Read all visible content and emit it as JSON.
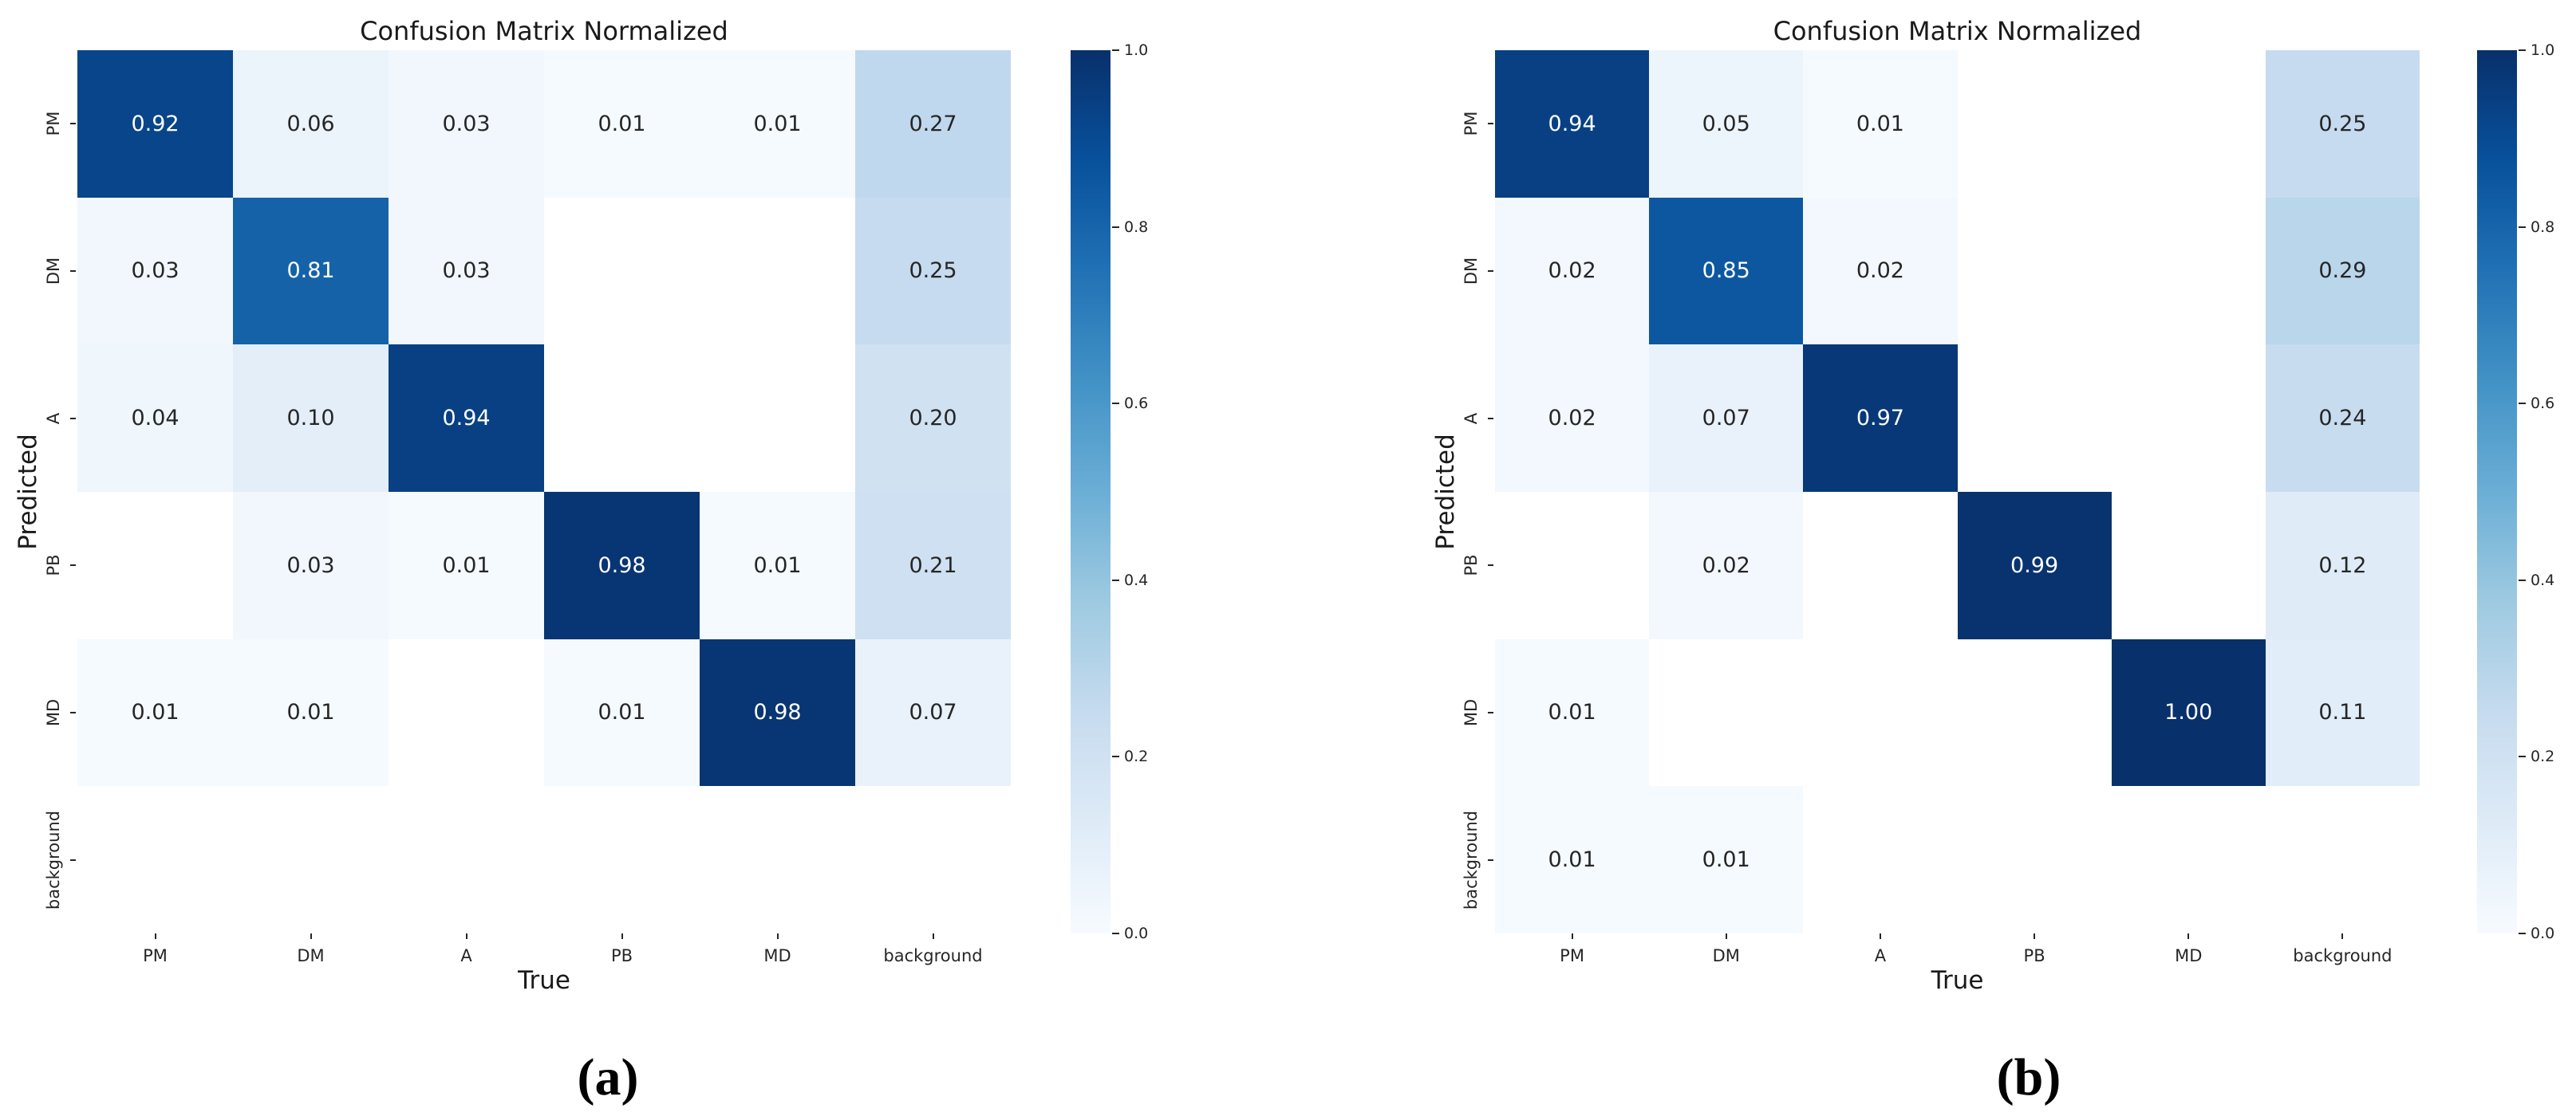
{
  "classes": [
    "PM",
    "DM",
    "A",
    "PB",
    "MD",
    "background"
  ],
  "colormap": {
    "name": "Blues",
    "stops": [
      "#f7fbff",
      "#deebf7",
      "#c6dbef",
      "#9ecae1",
      "#6baed6",
      "#4292c6",
      "#2171b5",
      "#08519c",
      "#08306b"
    ],
    "empty_cell_color": "#ffffff",
    "dark_text": "#262626",
    "light_text": "#ffffff",
    "text_switch_threshold": 0.5
  },
  "colorbar": {
    "tick_labels": [
      "1.0",
      "0.8",
      "0.6",
      "0.4",
      "0.2",
      "0.0"
    ],
    "vmin": 0.0,
    "vmax": 1.0
  },
  "chart_data": [
    {
      "type": "heatmap",
      "title": "Confusion Matrix Normalized",
      "xlabel": "True",
      "ylabel": "Predicted",
      "caption": "(a)",
      "x_categories": [
        "PM",
        "DM",
        "A",
        "PB",
        "MD",
        "background"
      ],
      "y_categories": [
        "PM",
        "DM",
        "A",
        "PB",
        "MD",
        "background"
      ],
      "values": [
        [
          0.92,
          0.06,
          0.03,
          0.01,
          0.01,
          0.27
        ],
        [
          0.03,
          0.81,
          0.03,
          null,
          null,
          0.25
        ],
        [
          0.04,
          0.1,
          0.94,
          null,
          null,
          0.2
        ],
        [
          null,
          0.03,
          0.01,
          0.98,
          0.01,
          0.21
        ],
        [
          0.01,
          0.01,
          null,
          0.01,
          0.98,
          0.07
        ],
        [
          null,
          null,
          null,
          null,
          null,
          null
        ]
      ],
      "vmin": 0,
      "vmax": 1,
      "colormap": "Blues",
      "annotation_format": ".2f",
      "legend_position": "right-colorbar",
      "grid": false
    },
    {
      "type": "heatmap",
      "title": "Confusion Matrix Normalized",
      "xlabel": "True",
      "ylabel": "Predicted",
      "caption": "(b)",
      "x_categories": [
        "PM",
        "DM",
        "A",
        "PB",
        "MD",
        "background"
      ],
      "y_categories": [
        "PM",
        "DM",
        "A",
        "PB",
        "MD",
        "background"
      ],
      "values": [
        [
          0.94,
          0.05,
          0.01,
          null,
          null,
          0.25
        ],
        [
          0.02,
          0.85,
          0.02,
          null,
          null,
          0.29
        ],
        [
          0.02,
          0.07,
          0.97,
          null,
          null,
          0.24
        ],
        [
          null,
          0.02,
          null,
          0.99,
          null,
          0.12
        ],
        [
          0.01,
          null,
          null,
          null,
          1.0,
          0.11
        ],
        [
          0.01,
          0.01,
          null,
          null,
          null,
          null
        ]
      ],
      "vmin": 0,
      "vmax": 1,
      "colormap": "Blues",
      "annotation_format": ".2f",
      "legend_position": "right-colorbar",
      "grid": false
    }
  ]
}
